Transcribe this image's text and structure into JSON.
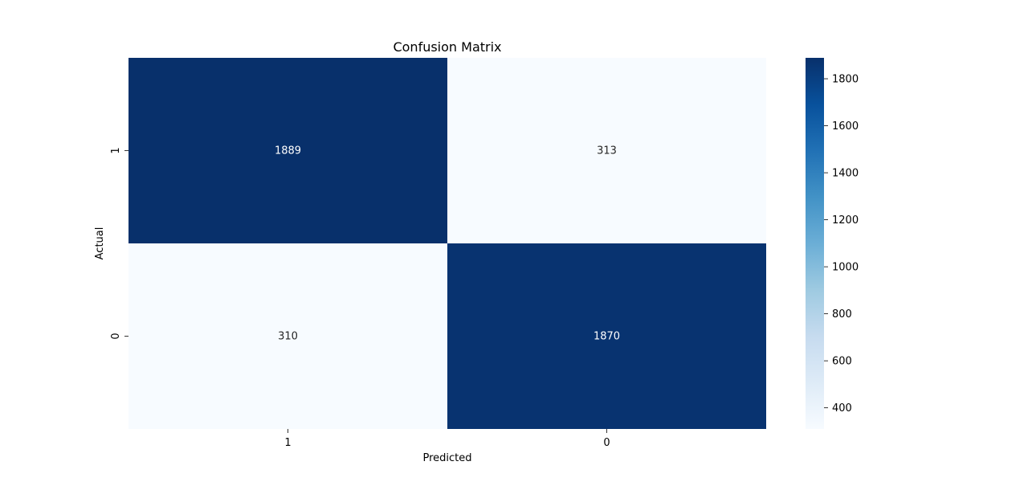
{
  "chart_data": {
    "type": "heatmap",
    "title": "Confusion Matrix",
    "xlabel": "Predicted",
    "ylabel": "Actual",
    "x_categories": [
      "1",
      "0"
    ],
    "y_categories": [
      "1",
      "0"
    ],
    "values": [
      [
        1889,
        313
      ],
      [
        310,
        1870
      ]
    ],
    "colormap": "Blues",
    "colorbar": {
      "min": 310,
      "max": 1889,
      "ticks": [
        400,
        600,
        800,
        1000,
        1200,
        1400,
        1600,
        1800
      ],
      "tick_labels": [
        "400",
        "600",
        "800",
        "1000",
        "1200",
        "1400",
        "1600",
        "1800"
      ]
    },
    "colors": {
      "low": "#f7fbff",
      "high": "#08306b",
      "annotation_on_dark": "#ffffff",
      "annotation_on_light": "#262626"
    }
  }
}
